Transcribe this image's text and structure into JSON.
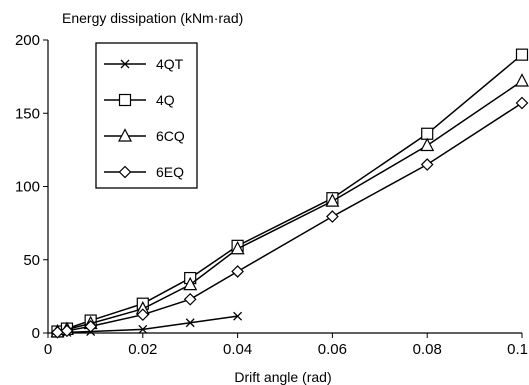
{
  "chart_data": {
    "type": "line",
    "title": "",
    "xlabel": "Drift angle (rad)",
    "ylabel": "Energy dissipation (kNm·rad)",
    "xlim": [
      0,
      0.1
    ],
    "ylim": [
      0,
      200
    ],
    "x_ticks": [
      "0",
      "0.02",
      "0.04",
      "0.06",
      "0.08",
      "0.1"
    ],
    "y_ticks": [
      "0",
      "50",
      "100",
      "150",
      "200"
    ],
    "grid": false,
    "legend_position": "top-left",
    "series": [
      {
        "name": "4QT",
        "marker": "x",
        "color": "#000000",
        "points": [
          {
            "x": 0.002,
            "y": 0.2
          },
          {
            "x": 0.004,
            "y": 0.4
          },
          {
            "x": 0.009,
            "y": 1.0
          },
          {
            "x": 0.02,
            "y": 2.5
          },
          {
            "x": 0.03,
            "y": 7.0
          },
          {
            "x": 0.04,
            "y": 11.5
          }
        ]
      },
      {
        "name": "4Q",
        "marker": "square",
        "color": "#000000",
        "points": [
          {
            "x": 0.002,
            "y": 1.0
          },
          {
            "x": 0.004,
            "y": 3.0
          },
          {
            "x": 0.009,
            "y": 8.5
          },
          {
            "x": 0.02,
            "y": 20.0
          },
          {
            "x": 0.03,
            "y": 37.5
          },
          {
            "x": 0.04,
            "y": 59.5
          },
          {
            "x": 0.06,
            "y": 92.0
          },
          {
            "x": 0.08,
            "y": 136.0
          },
          {
            "x": 0.1,
            "y": 190.0
          }
        ]
      },
      {
        "name": "6CQ",
        "marker": "triangle",
        "color": "#000000",
        "points": [
          {
            "x": 0.002,
            "y": 0.8
          },
          {
            "x": 0.004,
            "y": 2.5
          },
          {
            "x": 0.009,
            "y": 6.5
          },
          {
            "x": 0.02,
            "y": 16.5
          },
          {
            "x": 0.03,
            "y": 33.0
          },
          {
            "x": 0.04,
            "y": 57.5
          },
          {
            "x": 0.06,
            "y": 90.0
          },
          {
            "x": 0.08,
            "y": 128.0
          },
          {
            "x": 0.1,
            "y": 172.0
          }
        ]
      },
      {
        "name": "6EQ",
        "marker": "diamond",
        "color": "#000000",
        "points": [
          {
            "x": 0.002,
            "y": 0.5
          },
          {
            "x": 0.004,
            "y": 1.5
          },
          {
            "x": 0.009,
            "y": 4.5
          },
          {
            "x": 0.02,
            "y": 12.5
          },
          {
            "x": 0.03,
            "y": 23.0
          },
          {
            "x": 0.04,
            "y": 42.0
          },
          {
            "x": 0.06,
            "y": 79.5
          },
          {
            "x": 0.08,
            "y": 115.0
          },
          {
            "x": 0.1,
            "y": 157.0
          }
        ]
      }
    ]
  }
}
